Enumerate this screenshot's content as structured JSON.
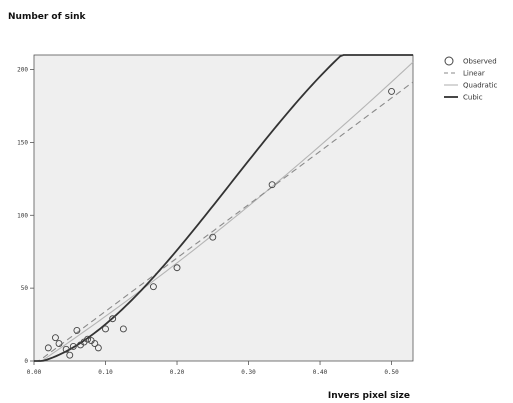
{
  "chart_data": {
    "type": "scatter",
    "title": "",
    "ylabel": "Number of sink",
    "xlabel": "Invers pixel size",
    "xlim": [
      0.0,
      0.53
    ],
    "ylim": [
      0,
      210
    ],
    "x_ticks": [
      0.0,
      0.1,
      0.2,
      0.3,
      0.4,
      0.5
    ],
    "x_tick_labels": [
      "0.00",
      "0.10",
      "0.20",
      "0.30",
      "0.40",
      "0.50"
    ],
    "y_ticks": [
      0,
      50,
      100,
      150,
      200
    ],
    "y_tick_labels": [
      "0",
      "50",
      "100",
      "150",
      "200"
    ],
    "grid": false,
    "legend_position": "right",
    "legend": [
      "Observed",
      "Linear",
      "Quadratic",
      "Cubic"
    ],
    "observed": {
      "x": [
        0.02,
        0.03,
        0.035,
        0.045,
        0.05,
        0.055,
        0.06,
        0.065,
        0.07,
        0.075,
        0.08,
        0.085,
        0.09,
        0.1,
        0.11,
        0.125,
        0.167,
        0.2,
        0.25,
        0.333,
        0.5
      ],
      "y": [
        9,
        16,
        12,
        8,
        4,
        10,
        21,
        11,
        13,
        15,
        14,
        12,
        9,
        22,
        29,
        22,
        51,
        64,
        85,
        121,
        185
      ]
    },
    "fits": {
      "Linear": {
        "coefficients": [
          -2.5,
          366.0
        ]
      },
      "Quadratic": {
        "coefficients": [
          -3.5,
          330.0,
          120.0
        ]
      },
      "Cubic": {
        "coefficients": [
          -1.5,
          100.0,
          1900.0,
          -2300.0
        ]
      }
    },
    "colors": {
      "background": "#efefef",
      "observed": "#444444",
      "linear": "#8a8a8a",
      "quadratic": "#b5b5b5",
      "cubic": "#333333"
    }
  }
}
